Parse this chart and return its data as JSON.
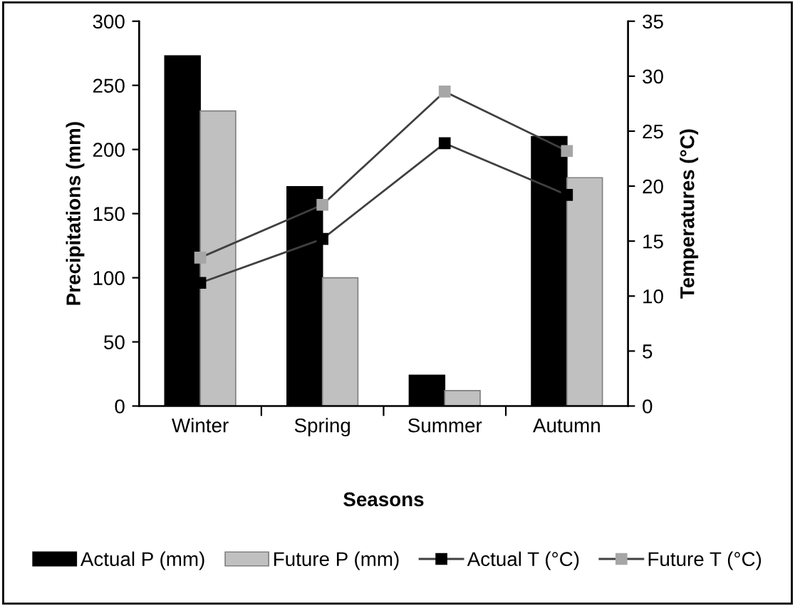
{
  "chart_data": {
    "type": "bar",
    "xlabel": "Seasons",
    "ylabel": "Precipitations (mm)",
    "y2label": "Temperatures (°C)",
    "categories": [
      "Winter",
      "Spring",
      "Summer",
      "Autumn"
    ],
    "series": [
      {
        "name": "Actual P (mm)",
        "color": "#000000",
        "values": [
          273,
          171,
          24,
          210
        ]
      },
      {
        "name": "Future P (mm)",
        "color": "#c0c0c0",
        "values": [
          230,
          100,
          12,
          178
        ]
      },
      {
        "name": "Actual T (°C)",
        "type": "line",
        "axis": "y2",
        "color": "#000000",
        "values": [
          11.2,
          15.2,
          23.9,
          19.2
        ]
      },
      {
        "name": "Future T (°C)",
        "type": "line",
        "axis": "y2",
        "color": "#a6a6a6",
        "values": [
          13.5,
          18.3,
          28.6,
          23.2
        ]
      }
    ],
    "ylim": [
      0,
      300
    ],
    "yticks": [
      0,
      50,
      100,
      150,
      200,
      250,
      300
    ],
    "y2lim": [
      0,
      35
    ],
    "y2ticks": [
      0,
      5,
      10,
      15,
      20,
      25,
      30,
      35
    ],
    "marker": "square",
    "line_style": "solid",
    "grid": false,
    "legend": "bottom"
  }
}
